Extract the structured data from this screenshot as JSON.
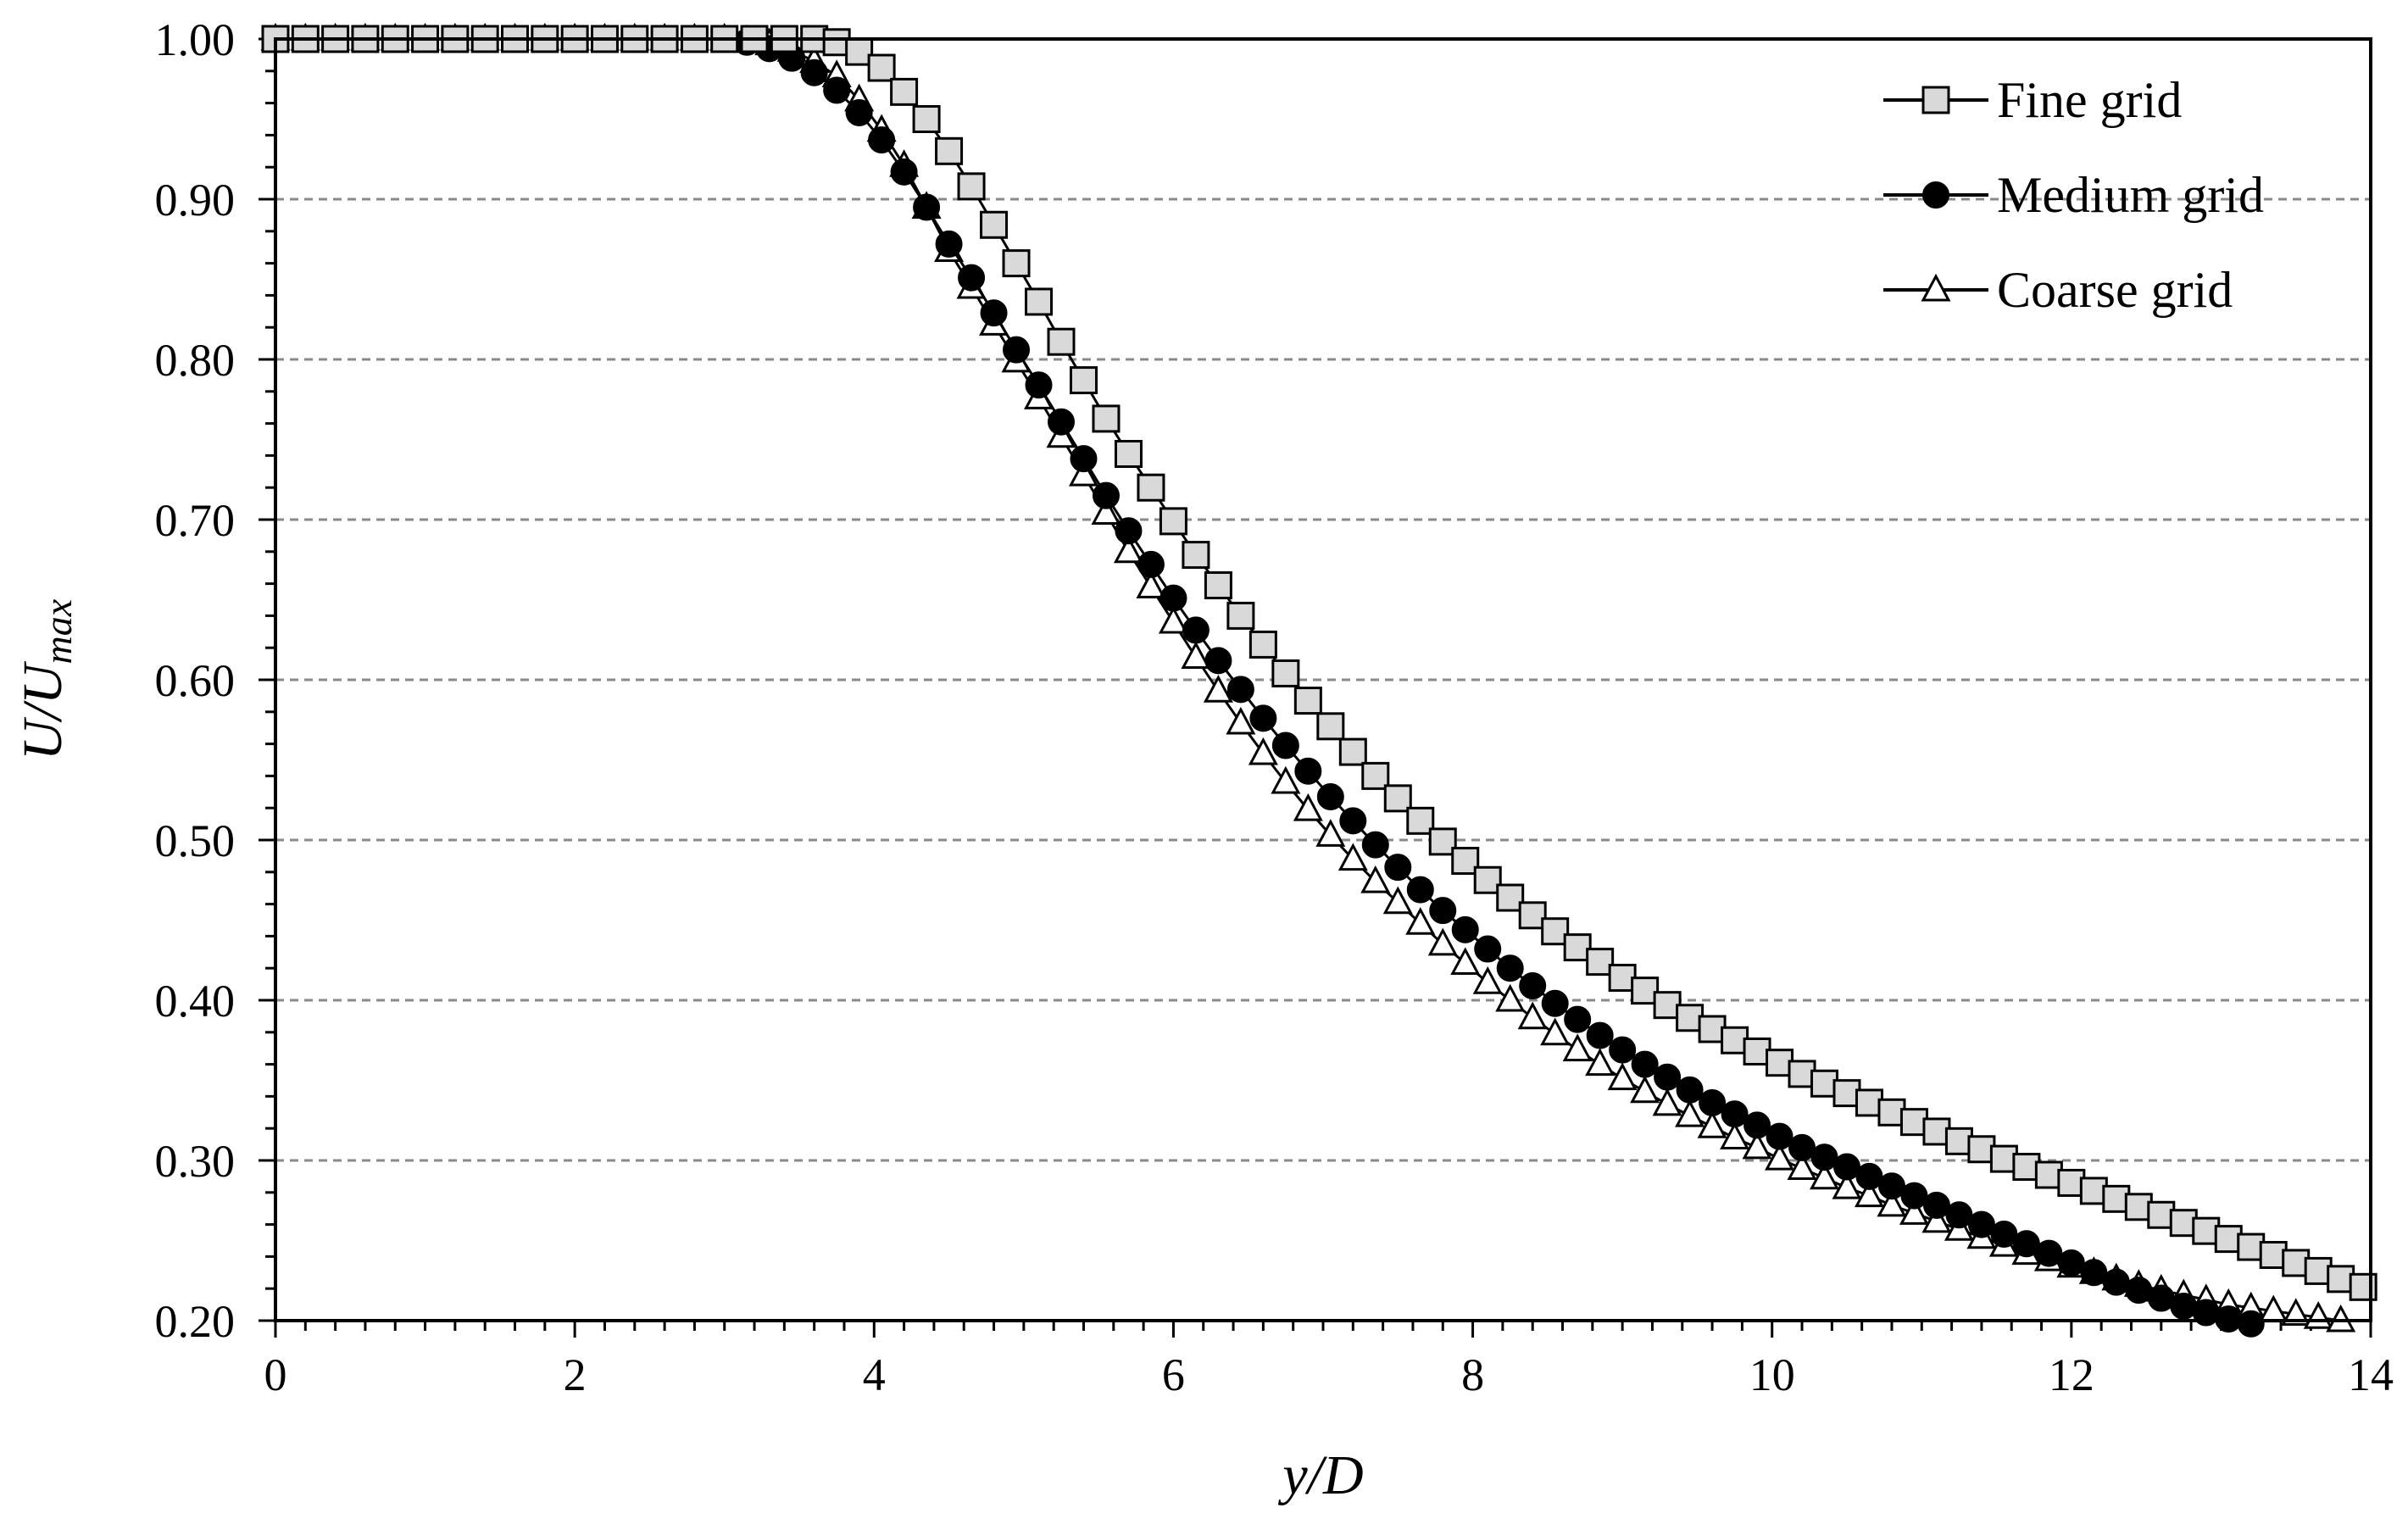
{
  "chart_data": {
    "type": "line",
    "xlabel": "y/D",
    "ylabel": "U/Umax",
    "ylabel_parts": {
      "a": "U",
      "slash": "/",
      "b": "U",
      "sub": "max"
    },
    "xlim": [
      0,
      14
    ],
    "ylim": [
      0.2,
      1.0
    ],
    "x_ticks": [
      0,
      2,
      4,
      6,
      8,
      10,
      12,
      14
    ],
    "x_tick_labels": [
      "0",
      "2",
      "4",
      "6",
      "8",
      "10",
      "12",
      "14"
    ],
    "y_ticks": [
      0.2,
      0.3,
      0.4,
      0.5,
      0.6,
      0.7,
      0.8,
      0.9,
      1.0
    ],
    "y_tick_labels": [
      "0.20",
      "0.30",
      "0.40",
      "0.50",
      "0.60",
      "0.70",
      "0.80",
      "0.90",
      "1.00"
    ],
    "grid": "horizontal dashed",
    "legend_position": "top-right",
    "series": [
      {
        "name": "Fine grid",
        "marker": "square",
        "marker_fill": "#d9d9d9",
        "points": [
          [
            0,
            1
          ],
          [
            0.2,
            1
          ],
          [
            0.4,
            1
          ],
          [
            0.6,
            1
          ],
          [
            0.8,
            1
          ],
          [
            1.0,
            1
          ],
          [
            1.2,
            1
          ],
          [
            1.4,
            1
          ],
          [
            1.6,
            1
          ],
          [
            1.8,
            1
          ],
          [
            2.0,
            1
          ],
          [
            2.2,
            1
          ],
          [
            2.4,
            1
          ],
          [
            2.6,
            1
          ],
          [
            2.8,
            1
          ],
          [
            3.0,
            1
          ],
          [
            3.2,
            1
          ],
          [
            3.4,
            1
          ],
          [
            3.6,
            1
          ],
          [
            3.75,
            0.998
          ],
          [
            3.9,
            0.992
          ],
          [
            4.05,
            0.982
          ],
          [
            4.2,
            0.967
          ],
          [
            4.35,
            0.95
          ],
          [
            4.5,
            0.93
          ],
          [
            4.65,
            0.908
          ],
          [
            4.8,
            0.884
          ],
          [
            4.95,
            0.86
          ],
          [
            5.1,
            0.836
          ],
          [
            5.25,
            0.811
          ],
          [
            5.4,
            0.787
          ],
          [
            5.55,
            0.763
          ],
          [
            5.7,
            0.741
          ],
          [
            5.85,
            0.72
          ],
          [
            6.0,
            0.699
          ],
          [
            6.15,
            0.678
          ],
          [
            6.3,
            0.659
          ],
          [
            6.45,
            0.64
          ],
          [
            6.6,
            0.622
          ],
          [
            6.75,
            0.604
          ],
          [
            6.9,
            0.587
          ],
          [
            7.05,
            0.571
          ],
          [
            7.2,
            0.555
          ],
          [
            7.35,
            0.54
          ],
          [
            7.5,
            0.526
          ],
          [
            7.65,
            0.512
          ],
          [
            7.8,
            0.499
          ],
          [
            7.95,
            0.487
          ],
          [
            8.1,
            0.475
          ],
          [
            8.25,
            0.464
          ],
          [
            8.4,
            0.453
          ],
          [
            8.55,
            0.443
          ],
          [
            8.7,
            0.433
          ],
          [
            8.85,
            0.424
          ],
          [
            9.0,
            0.414
          ],
          [
            9.15,
            0.406
          ],
          [
            9.3,
            0.397
          ],
          [
            9.45,
            0.389
          ],
          [
            9.6,
            0.382
          ],
          [
            9.75,
            0.375
          ],
          [
            9.9,
            0.368
          ],
          [
            10.05,
            0.361
          ],
          [
            10.2,
            0.354
          ],
          [
            10.35,
            0.348
          ],
          [
            10.5,
            0.342
          ],
          [
            10.65,
            0.336
          ],
          [
            10.8,
            0.33
          ],
          [
            10.95,
            0.324
          ],
          [
            11.1,
            0.318
          ],
          [
            11.25,
            0.312
          ],
          [
            11.4,
            0.307
          ],
          [
            11.55,
            0.301
          ],
          [
            11.7,
            0.296
          ],
          [
            11.85,
            0.291
          ],
          [
            12.0,
            0.286
          ],
          [
            12.15,
            0.281
          ],
          [
            12.3,
            0.276
          ],
          [
            12.45,
            0.271
          ],
          [
            12.6,
            0.266
          ],
          [
            12.75,
            0.261
          ],
          [
            12.9,
            0.256
          ],
          [
            13.05,
            0.251
          ],
          [
            13.2,
            0.246
          ],
          [
            13.35,
            0.241
          ],
          [
            13.5,
            0.236
          ],
          [
            13.65,
            0.231
          ],
          [
            13.8,
            0.226
          ],
          [
            13.95,
            0.221
          ]
        ]
      },
      {
        "name": "Medium grid",
        "marker": "circle",
        "marker_fill": "#000000",
        "points": [
          [
            0,
            1
          ],
          [
            0.2,
            1
          ],
          [
            0.4,
            1
          ],
          [
            0.6,
            1
          ],
          [
            0.8,
            1
          ],
          [
            1.0,
            1
          ],
          [
            1.2,
            1
          ],
          [
            1.4,
            1
          ],
          [
            1.6,
            1
          ],
          [
            1.8,
            1
          ],
          [
            2.0,
            1
          ],
          [
            2.2,
            1
          ],
          [
            2.4,
            1
          ],
          [
            2.6,
            1
          ],
          [
            2.8,
            1
          ],
          [
            3.0,
            1
          ],
          [
            3.15,
            0.998
          ],
          [
            3.3,
            0.994
          ],
          [
            3.45,
            0.988
          ],
          [
            3.6,
            0.979
          ],
          [
            3.75,
            0.968
          ],
          [
            3.9,
            0.954
          ],
          [
            4.05,
            0.937
          ],
          [
            4.2,
            0.917
          ],
          [
            4.35,
            0.895
          ],
          [
            4.5,
            0.872
          ],
          [
            4.65,
            0.851
          ],
          [
            4.8,
            0.829
          ],
          [
            4.95,
            0.806
          ],
          [
            5.1,
            0.784
          ],
          [
            5.25,
            0.761
          ],
          [
            5.4,
            0.738
          ],
          [
            5.55,
            0.715
          ],
          [
            5.7,
            0.693
          ],
          [
            5.85,
            0.672
          ],
          [
            6.0,
            0.651
          ],
          [
            6.15,
            0.631
          ],
          [
            6.3,
            0.612
          ],
          [
            6.45,
            0.594
          ],
          [
            6.6,
            0.576
          ],
          [
            6.75,
            0.559
          ],
          [
            6.9,
            0.543
          ],
          [
            7.05,
            0.527
          ],
          [
            7.2,
            0.512
          ],
          [
            7.35,
            0.497
          ],
          [
            7.5,
            0.483
          ],
          [
            7.65,
            0.469
          ],
          [
            7.8,
            0.456
          ],
          [
            7.95,
            0.444
          ],
          [
            8.1,
            0.432
          ],
          [
            8.25,
            0.42
          ],
          [
            8.4,
            0.409
          ],
          [
            8.55,
            0.398
          ],
          [
            8.7,
            0.388
          ],
          [
            8.85,
            0.378
          ],
          [
            9.0,
            0.369
          ],
          [
            9.15,
            0.36
          ],
          [
            9.3,
            0.352
          ],
          [
            9.45,
            0.344
          ],
          [
            9.6,
            0.336
          ],
          [
            9.75,
            0.329
          ],
          [
            9.9,
            0.322
          ],
          [
            10.05,
            0.315
          ],
          [
            10.2,
            0.308
          ],
          [
            10.35,
            0.302
          ],
          [
            10.5,
            0.296
          ],
          [
            10.65,
            0.29
          ],
          [
            10.8,
            0.284
          ],
          [
            10.95,
            0.278
          ],
          [
            11.1,
            0.272
          ],
          [
            11.25,
            0.266
          ],
          [
            11.4,
            0.26
          ],
          [
            11.55,
            0.254
          ],
          [
            11.7,
            0.248
          ],
          [
            11.85,
            0.242
          ],
          [
            12.0,
            0.236
          ],
          [
            12.15,
            0.23
          ],
          [
            12.3,
            0.224
          ],
          [
            12.45,
            0.219
          ],
          [
            12.6,
            0.214
          ],
          [
            12.75,
            0.209
          ],
          [
            12.9,
            0.205
          ],
          [
            13.05,
            0.201
          ],
          [
            13.2,
            0.198
          ]
        ]
      },
      {
        "name": "Coarse grid",
        "marker": "triangle",
        "marker_fill": "#ffffff",
        "points": [
          [
            0,
            1
          ],
          [
            0.2,
            1
          ],
          [
            0.4,
            1
          ],
          [
            0.6,
            1
          ],
          [
            0.8,
            1
          ],
          [
            1.0,
            1
          ],
          [
            1.2,
            1
          ],
          [
            1.4,
            1
          ],
          [
            1.6,
            1
          ],
          [
            1.8,
            1
          ],
          [
            2.0,
            1
          ],
          [
            2.2,
            1
          ],
          [
            2.4,
            1
          ],
          [
            2.6,
            1
          ],
          [
            2.8,
            1
          ],
          [
            3.0,
            1
          ],
          [
            3.15,
            0.999
          ],
          [
            3.3,
            0.997
          ],
          [
            3.45,
            0.993
          ],
          [
            3.6,
            0.986
          ],
          [
            3.75,
            0.977
          ],
          [
            3.9,
            0.962
          ],
          [
            4.05,
            0.943
          ],
          [
            4.2,
            0.921
          ],
          [
            4.35,
            0.895
          ],
          [
            4.5,
            0.868
          ],
          [
            4.65,
            0.845
          ],
          [
            4.8,
            0.822
          ],
          [
            4.95,
            0.799
          ],
          [
            5.1,
            0.776
          ],
          [
            5.25,
            0.752
          ],
          [
            5.4,
            0.728
          ],
          [
            5.55,
            0.704
          ],
          [
            5.7,
            0.68
          ],
          [
            5.85,
            0.658
          ],
          [
            6.0,
            0.636
          ],
          [
            6.15,
            0.614
          ],
          [
            6.3,
            0.593
          ],
          [
            6.45,
            0.573
          ],
          [
            6.6,
            0.554
          ],
          [
            6.75,
            0.536
          ],
          [
            6.9,
            0.519
          ],
          [
            7.05,
            0.503
          ],
          [
            7.2,
            0.488
          ],
          [
            7.35,
            0.474
          ],
          [
            7.5,
            0.461
          ],
          [
            7.65,
            0.448
          ],
          [
            7.8,
            0.435
          ],
          [
            7.95,
            0.423
          ],
          [
            8.1,
            0.411
          ],
          [
            8.25,
            0.4
          ],
          [
            8.4,
            0.389
          ],
          [
            8.55,
            0.379
          ],
          [
            8.7,
            0.369
          ],
          [
            8.85,
            0.36
          ],
          [
            9.0,
            0.351
          ],
          [
            9.15,
            0.343
          ],
          [
            9.3,
            0.335
          ],
          [
            9.45,
            0.328
          ],
          [
            9.6,
            0.321
          ],
          [
            9.75,
            0.314
          ],
          [
            9.9,
            0.308
          ],
          [
            10.05,
            0.301
          ],
          [
            10.2,
            0.295
          ],
          [
            10.35,
            0.289
          ],
          [
            10.5,
            0.283
          ],
          [
            10.65,
            0.278
          ],
          [
            10.8,
            0.272
          ],
          [
            10.95,
            0.267
          ],
          [
            11.1,
            0.262
          ],
          [
            11.25,
            0.257
          ],
          [
            11.4,
            0.252
          ],
          [
            11.55,
            0.247
          ],
          [
            11.7,
            0.242
          ],
          [
            11.85,
            0.238
          ],
          [
            12.0,
            0.234
          ],
          [
            12.15,
            0.23
          ],
          [
            12.3,
            0.226
          ],
          [
            12.45,
            0.222
          ],
          [
            12.6,
            0.219
          ],
          [
            12.75,
            0.216
          ],
          [
            12.9,
            0.213
          ],
          [
            13.05,
            0.21
          ],
          [
            13.2,
            0.208
          ],
          [
            13.35,
            0.206
          ],
          [
            13.5,
            0.204
          ],
          [
            13.65,
            0.202
          ],
          [
            13.8,
            0.2
          ]
        ]
      }
    ]
  }
}
